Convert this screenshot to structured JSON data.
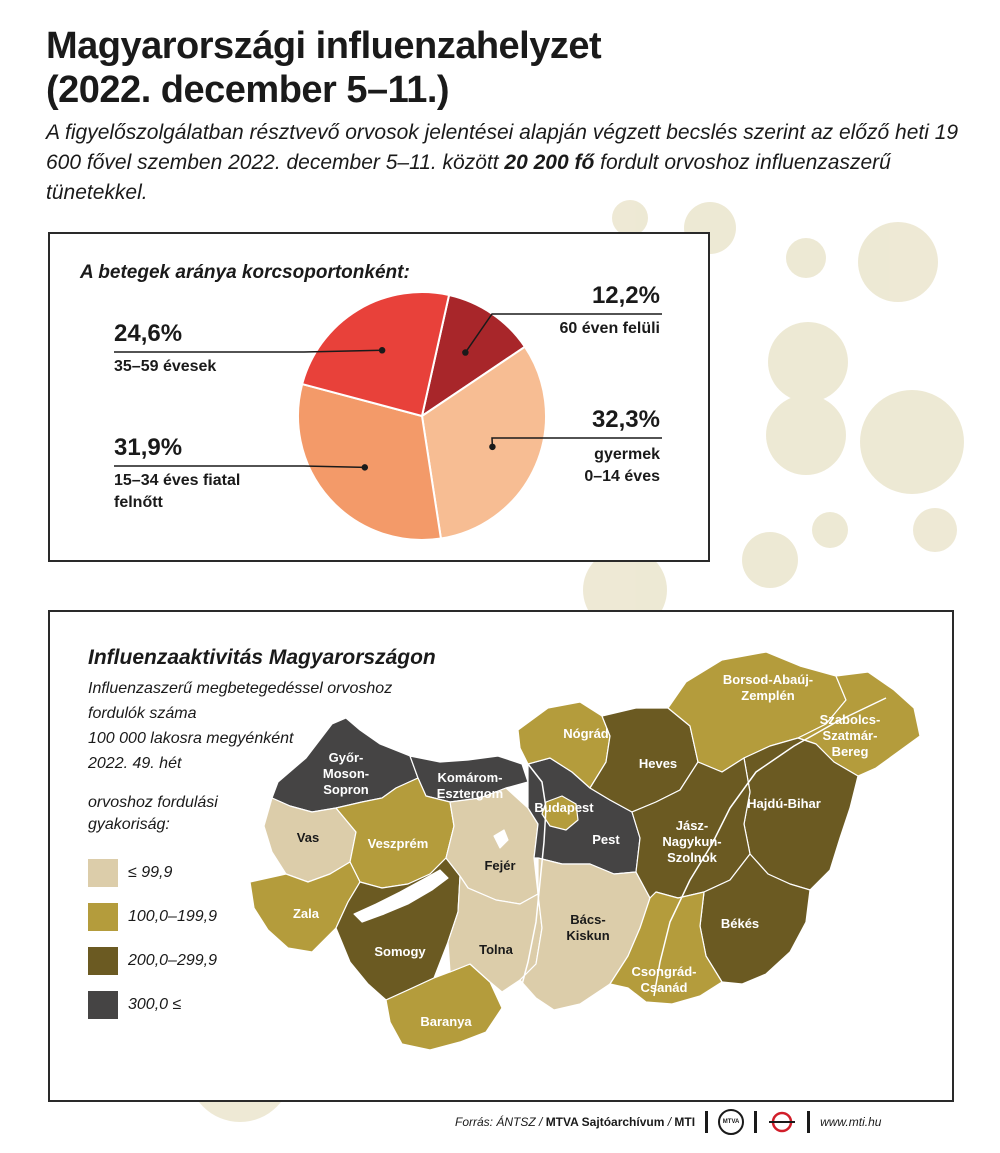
{
  "header": {
    "title_line1": "Magyarországi influenzahelyzet",
    "title_line2": "(2022. december 5–11.)",
    "intro_part1": "A figyelőszolgálatban résztvevő orvosok jelentései alapján végzett becslés szerint az előző heti 19 600 fővel szemben 2022. december 5–11. között",
    "intro_bold": "20 200 fő",
    "intro_part2": "fordult orvoshoz influenzaszerű tünetekkel."
  },
  "pie_panel": {
    "title": "A betegek aránya korcsoportonként:"
  },
  "chart_data": {
    "type": "pie",
    "title": "A betegek aránya korcsoportonként:",
    "slices": [
      {
        "label_line1": "60 éven felüli",
        "label_line2": "",
        "value": 12.2,
        "display": "12,2%",
        "color": "#a8262a"
      },
      {
        "label_line1": "gyermek",
        "label_line2": "0–14 éves",
        "value": 32.3,
        "display": "32,3%",
        "color": "#f7bd93"
      },
      {
        "label_line1": "15–34 éves fiatal",
        "label_line2": "felnőtt",
        "value": 31.9,
        "display": "31,9%",
        "color": "#f39a69"
      },
      {
        "label_line1": "35–59 évesek",
        "label_line2": "",
        "value": 24.6,
        "display": "24,6%",
        "color": "#e8413a"
      }
    ]
  },
  "map_panel": {
    "title": "Influenzaaktivitás Magyarországon",
    "subtitle_line1": "Influenzaszerű megbetegedéssel orvoshoz fordulók száma",
    "subtitle_line2": "100 000 lakosra megyénként",
    "subtitle_line3": "2022. 49. hét",
    "legend_title_line1": "orvoshoz fordulási",
    "legend_title_line2": "gyakoriság:",
    "legend": [
      {
        "label": "≤ 99,9",
        "color": "#dccdaa"
      },
      {
        "label": "100,0–199,9",
        "color": "#b49c3c"
      },
      {
        "label": "200,0–299,9",
        "color": "#6b5a22"
      },
      {
        "label": "300,0 ≤",
        "color": "#454444"
      }
    ],
    "counties": [
      {
        "name_line1": "Győr-",
        "name_line2": "Moson-",
        "name_line3": "Sopron",
        "category": 3
      },
      {
        "name_line1": "Komárom-",
        "name_line2": "Esztergom",
        "name_line3": "",
        "category": 3
      },
      {
        "name_line1": "Vas",
        "name_line2": "",
        "name_line3": "",
        "category": 0
      },
      {
        "name_line1": "Veszprém",
        "name_line2": "",
        "name_line3": "",
        "category": 1
      },
      {
        "name_line1": "Zala",
        "name_line2": "",
        "name_line3": "",
        "category": 1
      },
      {
        "name_line1": "Somogy",
        "name_line2": "",
        "name_line3": "",
        "category": 2
      },
      {
        "name_line1": "Baranya",
        "name_line2": "",
        "name_line3": "",
        "category": 1
      },
      {
        "name_line1": "Fejér",
        "name_line2": "",
        "name_line3": "",
        "category": 0
      },
      {
        "name_line1": "Tolna",
        "name_line2": "",
        "name_line3": "",
        "category": 0
      },
      {
        "name_line1": "Budapest",
        "name_line2": "",
        "name_line3": "",
        "category": 3
      },
      {
        "name_line1": "Pest",
        "name_line2": "",
        "name_line3": "",
        "category": 1
      },
      {
        "name_line1": "Bács-",
        "name_line2": "Kiskun",
        "name_line3": "",
        "category": 0
      },
      {
        "name_line1": "Nógrád",
        "name_line2": "",
        "name_line3": "",
        "category": 1
      },
      {
        "name_line1": "Heves",
        "name_line2": "",
        "name_line3": "",
        "category": 2
      },
      {
        "name_line1": "Borsod-Abaúj-",
        "name_line2": "Zemplén",
        "name_line3": "",
        "category": 1
      },
      {
        "name_line1": "Szabolcs-",
        "name_line2": "Szatmár-",
        "name_line3": "Bereg",
        "category": 1
      },
      {
        "name_line1": "Hajdú-Bihar",
        "name_line2": "",
        "name_line3": "",
        "category": 2
      },
      {
        "name_line1": "Jász-",
        "name_line2": "Nagykun-",
        "name_line3": "Szolnok",
        "category": 2
      },
      {
        "name_line1": "Békés",
        "name_line2": "",
        "name_line3": "",
        "category": 2
      },
      {
        "name_line1": "Csongrád-",
        "name_line2": "Csanád",
        "name_line3": "",
        "category": 1
      }
    ]
  },
  "footer": {
    "source_prefix": "Forrás: ÁNTSZ /",
    "source_bold": "MTVA Sajtóarchívum",
    "source_sep": "/",
    "source_mti": "MTI",
    "logo_text": "MTVA",
    "url": "www.mti.hu"
  }
}
